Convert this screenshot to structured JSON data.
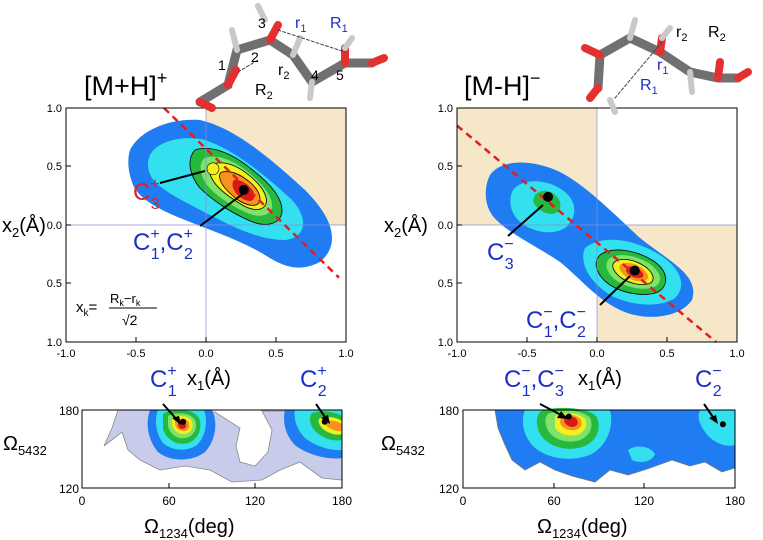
{
  "chart_data": [
    {
      "type": "contour",
      "title": "[M+H]+",
      "title_main": "[M+H]",
      "title_sup": "+",
      "xlabel_sym": "x",
      "xlabel_sub": "1",
      "xlabel_unit": "(Å)",
      "ylabel_sym": "x",
      "ylabel_sub": "2",
      "ylabel_unit": "(Å)",
      "xlim": [
        -1.0,
        1.0
      ],
      "ylim": [
        -1.0,
        1.0
      ],
      "x_ticks": [
        "-1.0",
        "-0.5",
        "0.0",
        "0.5",
        "1.0"
      ],
      "y_ticks": [
        "1.0",
        "0.5",
        "0.0",
        "0.5",
        "1.0"
      ],
      "formula": {
        "lhs_sym": "x",
        "lhs_sub": "k",
        "num": "R",
        "num_sub": "k",
        "minus": "−",
        "num2": "r",
        "num2_sub": "k",
        "den": "√2"
      },
      "peaks": [
        {
          "label": "C",
          "sup": "+",
          "sub": "3",
          "x": 0.05,
          "y": 0.48
        },
        {
          "label": "C",
          "sup": "+",
          "sub": "1",
          "label2": "C",
          "sup2": "+",
          "sub2": "2",
          "x": 0.27,
          "y": 0.3
        }
      ],
      "diagonal": {
        "from": [
          -0.3,
          1.0
        ],
        "to": [
          0.95,
          -0.45
        ]
      }
    },
    {
      "type": "contour",
      "title": "[M-H]-",
      "title_main": "[M-H]",
      "title_sup": "−",
      "xlabel_sym": "x",
      "xlabel_sub": "1",
      "xlabel_unit": "(Å)",
      "ylabel_sym": "x",
      "ylabel_sub": "2",
      "ylabel_unit": "(Å)",
      "xlim": [
        -1.0,
        1.0
      ],
      "ylim": [
        -1.0,
        1.0
      ],
      "x_ticks": [
        "-1.0",
        "-0.5",
        "0.0",
        "0.5",
        "1.0"
      ],
      "y_ticks": [
        "1.0",
        "0.5",
        "0.0",
        "0.5",
        "1.0"
      ],
      "peaks": [
        {
          "label": "C",
          "sup": "−",
          "sub": "3",
          "x": -0.35,
          "y": 0.24
        },
        {
          "label": "C",
          "sup": "−",
          "sub": "1",
          "label2": "C",
          "sup2": "−",
          "sub2": "2",
          "x": 0.27,
          "y": -0.39
        }
      ],
      "diagonal": {
        "from": [
          -1.0,
          0.85
        ],
        "to": [
          0.85,
          -1.0
        ]
      }
    },
    {
      "type": "contour",
      "xlabel_sym": "Ω",
      "xlabel_sub": "1234",
      "xlabel_unit": "(deg)",
      "ylabel_sym": "Ω",
      "ylabel_sub": "5432",
      "xlim": [
        0,
        180
      ],
      "ylim": [
        120,
        180
      ],
      "x_ticks": [
        "0",
        "60",
        "120",
        "180"
      ],
      "y_ticks": [
        "180",
        "120"
      ],
      "peaks": [
        {
          "label": "C",
          "sup": "+",
          "sub": "1",
          "x": 70,
          "y": 171
        },
        {
          "label": "C",
          "sup": "+",
          "sub": "2",
          "x": 168,
          "y": 171
        }
      ]
    },
    {
      "type": "contour",
      "xlabel_sym": "Ω",
      "xlabel_sub": "1234",
      "xlabel_unit": "(deg)",
      "ylabel_sym": "Ω",
      "ylabel_sub": "5432",
      "xlim": [
        0,
        180
      ],
      "ylim": [
        120,
        180
      ],
      "x_ticks": [
        "0",
        "60",
        "120",
        "180"
      ],
      "y_ticks": [
        "180",
        "120"
      ],
      "peaks": [
        {
          "label": "C",
          "sup": "−",
          "sub": "1",
          "label2": "C",
          "sup2": "−",
          "sub2": "3",
          "x": 70,
          "y": 175
        },
        {
          "label": "C",
          "sup": "−",
          "sub": "2",
          "x": 172,
          "y": 169
        }
      ]
    }
  ],
  "molecule_left": {
    "atoms": [
      "1",
      "2",
      "3",
      "4",
      "5"
    ],
    "r1": "r",
    "r1_sub": "1",
    "R1": "R",
    "R1_sub": "1",
    "r2": "r",
    "r2_sub": "2",
    "R2": "R",
    "R2_sub": "2"
  },
  "molecule_right": {
    "r2": "r",
    "r2_sub": "2",
    "R2": "R",
    "R2_sub": "2",
    "r1": "r",
    "r1_sub": "1",
    "R1": "R",
    "R1_sub": "1"
  },
  "colors": {
    "shade": "#f6e7c8",
    "diag": "#e02020",
    "red_label": "#e02020",
    "blue_label": "#1c2fc4",
    "lavender": "#c8cbea"
  }
}
